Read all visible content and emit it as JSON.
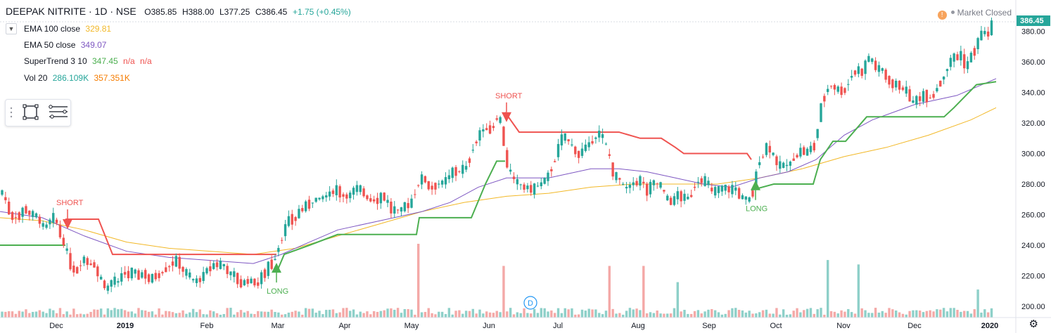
{
  "header": {
    "symbol": "DEEPAK NITRITE · 1D · NSE",
    "open": "O385.85",
    "high": "H388.00",
    "low": "L377.25",
    "close": "C386.45",
    "change": "+1.75 (+0.45%)"
  },
  "indicators": [
    {
      "label": "EMA 100 close",
      "values": [
        "329.81"
      ],
      "colors": [
        "#f2b827"
      ]
    },
    {
      "label": "EMA 50 close",
      "values": [
        "349.07"
      ],
      "colors": [
        "#7e57c2"
      ]
    },
    {
      "label": "SuperTrend 3 10",
      "values": [
        "347.45",
        "n/a",
        "n/a"
      ],
      "colors": [
        "#4caf50",
        "#ef5350",
        "#ef5350"
      ]
    },
    {
      "label": "Vol 20",
      "values": [
        "286.109K",
        "357.351K"
      ],
      "colors": [
        "#26a69a",
        "#f57c00"
      ]
    }
  ],
  "status": {
    "market": "Market Closed",
    "alert": "!"
  },
  "colors": {
    "up": "#26a69a",
    "down": "#ef5350",
    "ema100": "#f2b827",
    "ema50": "#7e57c2",
    "st_up": "#4caf50",
    "st_down": "#ef5350",
    "vol_up": "#8ed0c9",
    "vol_down": "#f4a9a7"
  },
  "chart_data": {
    "type": "candlestick",
    "price_axis": {
      "ticks": [
        200,
        220,
        240,
        260,
        280,
        300,
        320,
        340,
        360,
        380
      ],
      "ylim": [
        195,
        391
      ],
      "last_price": "386.45"
    },
    "time_axis": {
      "labels": [
        "Dec",
        "2019",
        "Feb",
        "Mar",
        "Apr",
        "May",
        "Jun",
        "Jul",
        "Aug",
        "Sep",
        "Oct",
        "Nov",
        "Dec",
        "2020"
      ]
    },
    "price_path": [
      [
        0,
        276
      ],
      [
        10,
        266
      ],
      [
        20,
        258
      ],
      [
        30,
        262
      ],
      [
        38,
        264
      ],
      [
        46,
        260
      ],
      [
        55,
        256
      ],
      [
        65,
        250
      ],
      [
        74,
        258
      ],
      [
        80,
        254
      ],
      [
        86,
        248
      ],
      [
        92,
        240
      ],
      [
        100,
        228
      ],
      [
        108,
        224
      ],
      [
        118,
        232
      ],
      [
        126,
        228
      ],
      [
        135,
        228
      ],
      [
        143,
        218
      ],
      [
        152,
        210
      ],
      [
        160,
        216
      ],
      [
        168,
        214
      ],
      [
        176,
        222
      ],
      [
        186,
        222
      ],
      [
        196,
        220
      ],
      [
        206,
        222
      ],
      [
        216,
        218
      ],
      [
        226,
        222
      ],
      [
        236,
        226
      ],
      [
        246,
        230
      ],
      [
        256,
        228
      ],
      [
        266,
        220
      ],
      [
        276,
        214
      ],
      [
        286,
        218
      ],
      [
        296,
        224
      ],
      [
        306,
        228
      ],
      [
        316,
        226
      ],
      [
        326,
        222
      ],
      [
        336,
        218
      ],
      [
        346,
        216
      ],
      [
        356,
        217
      ],
      [
        366,
        215
      ],
      [
        376,
        222
      ],
      [
        386,
        228
      ],
      [
        395,
        238
      ],
      [
        400,
        245
      ],
      [
        408,
        254
      ],
      [
        416,
        258
      ],
      [
        426,
        262
      ],
      [
        436,
        266
      ],
      [
        446,
        270
      ],
      [
        456,
        270
      ],
      [
        466,
        272
      ],
      [
        476,
        276
      ],
      [
        486,
        274
      ],
      [
        496,
        272
      ],
      [
        506,
        276
      ],
      [
        516,
        274
      ],
      [
        526,
        270
      ],
      [
        536,
        270
      ],
      [
        546,
        272
      ],
      [
        556,
        264
      ],
      [
        566,
        262
      ],
      [
        576,
        264
      ],
      [
        586,
        268
      ],
      [
        594,
        282
      ],
      [
        602,
        284
      ],
      [
        612,
        278
      ],
      [
        622,
        282
      ],
      [
        632,
        280
      ],
      [
        642,
        286
      ],
      [
        652,
        290
      ],
      [
        662,
        288
      ],
      [
        672,
        306
      ],
      [
        680,
        312
      ],
      [
        690,
        316
      ],
      [
        700,
        318
      ],
      [
        706,
        326
      ],
      [
        712,
        320
      ],
      [
        716,
        308
      ],
      [
        722,
        292
      ],
      [
        730,
        282
      ],
      [
        740,
        278
      ],
      [
        750,
        278
      ],
      [
        760,
        276
      ],
      [
        770,
        280
      ],
      [
        780,
        284
      ],
      [
        790,
        300
      ],
      [
        800,
        310
      ],
      [
        810,
        306
      ],
      [
        820,
        300
      ],
      [
        830,
        302
      ],
      [
        840,
        306
      ],
      [
        850,
        314
      ],
      [
        858,
        308
      ],
      [
        866,
        296
      ],
      [
        872,
        286
      ],
      [
        880,
        282
      ],
      [
        890,
        276
      ],
      [
        900,
        280
      ],
      [
        910,
        282
      ],
      [
        920,
        276
      ],
      [
        930,
        280
      ],
      [
        940,
        278
      ],
      [
        948,
        268
      ],
      [
        956,
        268
      ],
      [
        964,
        272
      ],
      [
        972,
        272
      ],
      [
        980,
        268
      ],
      [
        988,
        282
      ],
      [
        996,
        284
      ],
      [
        1004,
        280
      ],
      [
        1012,
        274
      ],
      [
        1020,
        274
      ],
      [
        1030,
        276
      ],
      [
        1040,
        276
      ],
      [
        1050,
        274
      ],
      [
        1058,
        270
      ],
      [
        1066,
        268
      ],
      [
        1072,
        280
      ],
      [
        1080,
        296
      ],
      [
        1090,
        304
      ],
      [
        1098,
        300
      ],
      [
        1106,
        292
      ],
      [
        1114,
        290
      ],
      [
        1122,
        292
      ],
      [
        1132,
        300
      ],
      [
        1142,
        302
      ],
      [
        1150,
        300
      ],
      [
        1158,
        306
      ],
      [
        1164,
        322
      ],
      [
        1170,
        336
      ],
      [
        1178,
        346
      ],
      [
        1186,
        344
      ],
      [
        1194,
        340
      ],
      [
        1202,
        344
      ],
      [
        1210,
        352
      ],
      [
        1218,
        356
      ],
      [
        1226,
        352
      ],
      [
        1234,
        362
      ],
      [
        1242,
        358
      ],
      [
        1252,
        354
      ],
      [
        1262,
        350
      ],
      [
        1272,
        346
      ],
      [
        1282,
        344
      ],
      [
        1292,
        338
      ],
      [
        1300,
        332
      ],
      [
        1308,
        336
      ],
      [
        1316,
        338
      ],
      [
        1326,
        338
      ],
      [
        1334,
        346
      ],
      [
        1342,
        352
      ],
      [
        1350,
        360
      ],
      [
        1358,
        362
      ],
      [
        1366,
        364
      ],
      [
        1374,
        356
      ],
      [
        1382,
        364
      ],
      [
        1390,
        374
      ],
      [
        1398,
        378
      ],
      [
        1406,
        378
      ],
      [
        1412,
        386
      ]
    ],
    "ema100_path": [
      [
        0,
        258
      ],
      [
        60,
        256
      ],
      [
        120,
        250
      ],
      [
        180,
        242
      ],
      [
        240,
        238
      ],
      [
        300,
        236
      ],
      [
        360,
        234
      ],
      [
        420,
        238
      ],
      [
        480,
        246
      ],
      [
        540,
        254
      ],
      [
        600,
        262
      ],
      [
        660,
        268
      ],
      [
        720,
        272
      ],
      [
        780,
        274
      ],
      [
        840,
        278
      ],
      [
        900,
        280
      ],
      [
        960,
        280
      ],
      [
        1020,
        280
      ],
      [
        1080,
        284
      ],
      [
        1140,
        290
      ],
      [
        1200,
        298
      ],
      [
        1260,
        304
      ],
      [
        1320,
        312
      ],
      [
        1380,
        322
      ],
      [
        1416,
        330
      ]
    ],
    "ema50_path": [
      [
        0,
        262
      ],
      [
        60,
        258
      ],
      [
        120,
        246
      ],
      [
        180,
        236
      ],
      [
        240,
        232
      ],
      [
        300,
        230
      ],
      [
        360,
        228
      ],
      [
        400,
        234
      ],
      [
        440,
        242
      ],
      [
        480,
        250
      ],
      [
        540,
        256
      ],
      [
        600,
        262
      ],
      [
        640,
        268
      ],
      [
        680,
        278
      ],
      [
        720,
        284
      ],
      [
        780,
        284
      ],
      [
        840,
        290
      ],
      [
        880,
        290
      ],
      [
        920,
        288
      ],
      [
        960,
        284
      ],
      [
        1000,
        280
      ],
      [
        1040,
        278
      ],
      [
        1080,
        284
      ],
      [
        1120,
        288
      ],
      [
        1160,
        296
      ],
      [
        1200,
        312
      ],
      [
        1240,
        322
      ],
      [
        1300,
        332
      ],
      [
        1360,
        338
      ],
      [
        1416,
        349
      ]
    ],
    "supertrend_segments": [
      {
        "dir": "up",
        "points": [
          [
            0,
            240
          ],
          [
            93,
            240
          ]
        ]
      },
      {
        "dir": "down",
        "points": [
          [
            93,
            257
          ],
          [
            140,
            257
          ],
          [
            160,
            234
          ],
          [
            393,
            234
          ]
        ]
      },
      {
        "dir": "up",
        "points": [
          [
            393,
            222
          ],
          [
            404,
            234
          ],
          [
            440,
            240
          ],
          [
            480,
            247
          ],
          [
            592,
            247
          ],
          [
            596,
            258
          ],
          [
            670,
            258
          ],
          [
            690,
            280
          ],
          [
            706,
            295
          ],
          [
            718,
            295
          ]
        ]
      },
      {
        "dir": "down",
        "points": [
          [
            718,
            327
          ],
          [
            738,
            314
          ],
          [
            880,
            314
          ],
          [
            910,
            310
          ],
          [
            940,
            310
          ],
          [
            960,
            304
          ],
          [
            972,
            300
          ],
          [
            1062,
            300
          ],
          [
            1068,
            296
          ]
        ]
      },
      {
        "dir": "up",
        "points": [
          [
            1068,
            276
          ],
          [
            1100,
            280
          ],
          [
            1156,
            280
          ],
          [
            1166,
            296
          ],
          [
            1184,
            308
          ],
          [
            1202,
            308
          ],
          [
            1232,
            324
          ],
          [
            1342,
            324
          ],
          [
            1356,
            330
          ],
          [
            1388,
            345
          ],
          [
            1416,
            347
          ]
        ]
      }
    ],
    "signals": [
      {
        "text": "SHORT",
        "x": 96,
        "dir": "down"
      },
      {
        "text": "LONG",
        "x": 393,
        "dir": "up"
      },
      {
        "text": "SHORT",
        "x": 720,
        "dir": "down"
      },
      {
        "text": "LONG",
        "x": 1074,
        "dir": "up"
      }
    ],
    "volume_spikes": [
      [
        594,
        100
      ],
      [
        716,
        70
      ],
      [
        866,
        70
      ],
      [
        915,
        70
      ],
      [
        965,
        48
      ],
      [
        1176,
        78
      ],
      [
        1222,
        72
      ],
      [
        1388,
        38
      ]
    ],
    "event_marker": "D"
  }
}
